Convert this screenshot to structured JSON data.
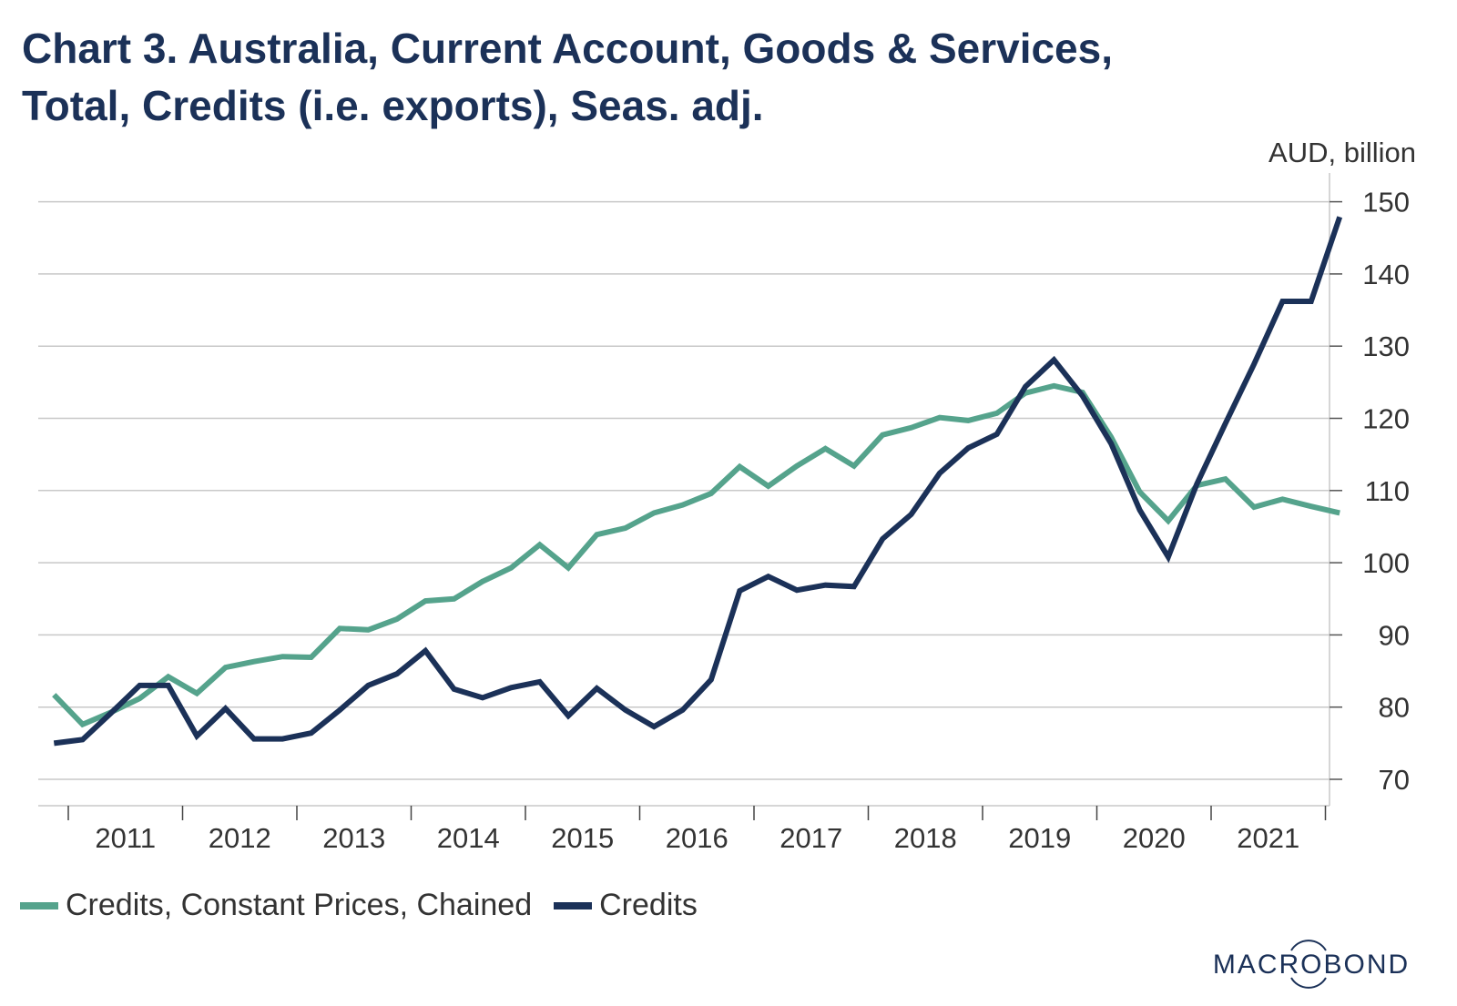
{
  "title_lines": [
    "Chart 3. Australia, Current Account, Goods & Services,",
    "Total, Credits (i.e. exports), Seas. adj."
  ],
  "logo_text": "MACROBOND",
  "colors": {
    "constant_prices": "#55a38c",
    "credits": "#1b3158",
    "title": "#1b3158",
    "grid": "#c8c8c8",
    "text": "#333333"
  },
  "chart_data": {
    "type": "line",
    "title": "Chart 3. Australia, Current Account, Goods & Services, Total, Credits (i.e. exports), Seas. adj.",
    "xlabel": "",
    "ylabel": "AUD, billion",
    "y_axis_position": "right",
    "ylim": [
      67,
      151
    ],
    "yticks": [
      70,
      80,
      90,
      100,
      110,
      120,
      130,
      140,
      150
    ],
    "grid": true,
    "legend_position": "bottom-left",
    "frequency": "quarterly",
    "x_range": [
      "2010 Q4",
      "2022 Q1"
    ],
    "year_labels": [
      "2011",
      "2012",
      "2013",
      "2014",
      "2015",
      "2016",
      "2017",
      "2018",
      "2019",
      "2020",
      "2021"
    ],
    "x": [
      "2010Q4",
      "2011Q1",
      "2011Q2",
      "2011Q3",
      "2011Q4",
      "2012Q1",
      "2012Q2",
      "2012Q3",
      "2012Q4",
      "2013Q1",
      "2013Q2",
      "2013Q3",
      "2013Q4",
      "2014Q1",
      "2014Q2",
      "2014Q3",
      "2014Q4",
      "2015Q1",
      "2015Q2",
      "2015Q3",
      "2015Q4",
      "2016Q1",
      "2016Q2",
      "2016Q3",
      "2016Q4",
      "2017Q1",
      "2017Q2",
      "2017Q3",
      "2017Q4",
      "2018Q1",
      "2018Q2",
      "2018Q3",
      "2018Q4",
      "2019Q1",
      "2019Q2",
      "2019Q3",
      "2019Q4",
      "2020Q1",
      "2020Q2",
      "2020Q3",
      "2020Q4",
      "2021Q1",
      "2021Q2",
      "2021Q3",
      "2021Q4",
      "2022Q1"
    ],
    "series": [
      {
        "name": "Credits, Constant Prices, Chained",
        "color": "#55a38c",
        "values": [
          81.7,
          77.6,
          79.3,
          81.2,
          84.2,
          81.9,
          85.5,
          86.3,
          87.0,
          86.9,
          90.9,
          90.7,
          92.2,
          94.7,
          95.0,
          97.4,
          99.3,
          102.5,
          99.3,
          103.9,
          104.8,
          106.9,
          108.0,
          109.6,
          113.3,
          110.6,
          113.4,
          115.8,
          113.4,
          117.7,
          118.7,
          120.1,
          119.7,
          120.7,
          123.5,
          124.5,
          123.6,
          117.4,
          109.8,
          105.8,
          110.7,
          111.6,
          107.7,
          108.8,
          107.8,
          106.9
        ]
      },
      {
        "name": "Credits",
        "color": "#1b3158",
        "values": [
          75.0,
          75.5,
          79.2,
          83.0,
          83.0,
          76.0,
          79.8,
          75.6,
          75.6,
          76.4,
          79.6,
          83.0,
          84.6,
          87.8,
          82.5,
          81.3,
          82.7,
          83.5,
          78.8,
          82.6,
          79.6,
          77.3,
          79.6,
          83.8,
          96.1,
          98.1,
          96.2,
          96.9,
          96.7,
          103.3,
          106.7,
          112.4,
          115.9,
          117.8,
          124.4,
          128.1,
          123.1,
          116.5,
          107.3,
          100.8,
          110.9,
          119.3,
          127.5,
          136.2,
          136.2,
          147.9
        ]
      }
    ]
  }
}
